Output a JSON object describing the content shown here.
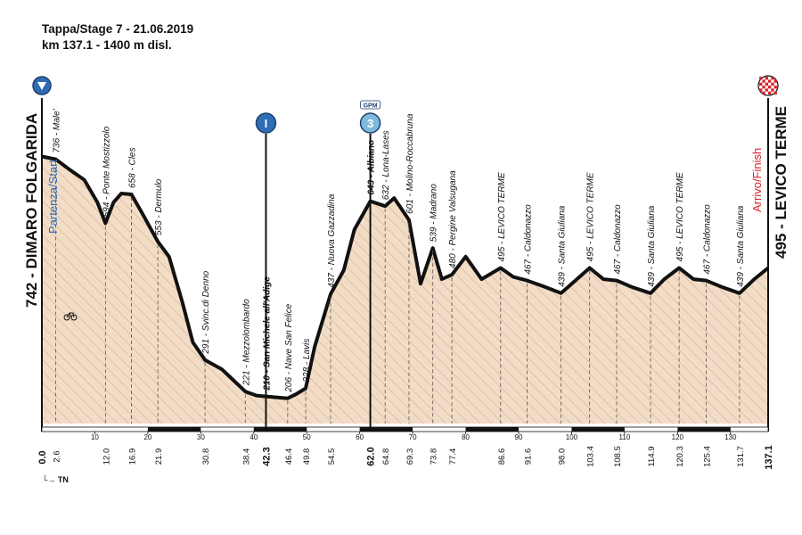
{
  "header": {
    "line1": "Tappa/Stage 7 - 21.06.2019",
    "line2": "km 137.1 - 1400 m disl."
  },
  "start": {
    "name": "742 - DIMARO FOLGARIDA",
    "label": "Partenza/Start",
    "icon": "start-arrow-icon"
  },
  "finish": {
    "name": "495 - LEVICO TERME",
    "label": "Arrivo/Finish",
    "icon": "checkered-flag-icon"
  },
  "footnote": "TN",
  "markers": {
    "intermediate": {
      "symbol": "I",
      "km": 42.3
    },
    "gpm": {
      "caption": "GPM",
      "symbol": "3",
      "km": 62.0
    }
  },
  "colors": {
    "profile_fill": "#f3dcc6",
    "hatch": "#c9a98b",
    "profile_line": "#111111",
    "marker_blue": "#2e6db4",
    "gpm_blue": "#7fbadc",
    "finish_red": "#d8232a"
  },
  "chart_data": {
    "type": "area",
    "xlabel": "",
    "ylabel": "",
    "xlim": [
      0,
      137.1
    ],
    "ylim": [
      150,
      1000
    ],
    "x_ticks": [
      0,
      10,
      20,
      30,
      40,
      50,
      60,
      70,
      80,
      90,
      100,
      110,
      120,
      130
    ],
    "profile": [
      {
        "km": 0.0,
        "alt": 742
      },
      {
        "km": 2.6,
        "alt": 736
      },
      {
        "km": 5.0,
        "alt": 715
      },
      {
        "km": 8.0,
        "alt": 690
      },
      {
        "km": 10.5,
        "alt": 640
      },
      {
        "km": 12.0,
        "alt": 594
      },
      {
        "km": 13.5,
        "alt": 640
      },
      {
        "km": 15.0,
        "alt": 660
      },
      {
        "km": 16.9,
        "alt": 658
      },
      {
        "km": 19.0,
        "alt": 615
      },
      {
        "km": 21.9,
        "alt": 553
      },
      {
        "km": 24.0,
        "alt": 520
      },
      {
        "km": 26.5,
        "alt": 420
      },
      {
        "km": 28.5,
        "alt": 330
      },
      {
        "km": 30.8,
        "alt": 291
      },
      {
        "km": 34.0,
        "alt": 270
      },
      {
        "km": 38.4,
        "alt": 221
      },
      {
        "km": 40.5,
        "alt": 212
      },
      {
        "km": 42.3,
        "alt": 210
      },
      {
        "km": 44.5,
        "alt": 208
      },
      {
        "km": 46.4,
        "alt": 206
      },
      {
        "km": 48.0,
        "alt": 215
      },
      {
        "km": 49.8,
        "alt": 228
      },
      {
        "km": 51.5,
        "alt": 320
      },
      {
        "km": 54.5,
        "alt": 437
      },
      {
        "km": 57.0,
        "alt": 490
      },
      {
        "km": 59.0,
        "alt": 580
      },
      {
        "km": 62.0,
        "alt": 643
      },
      {
        "km": 64.8,
        "alt": 632
      },
      {
        "km": 66.5,
        "alt": 650
      },
      {
        "km": 69.3,
        "alt": 601
      },
      {
        "km": 71.5,
        "alt": 460
      },
      {
        "km": 73.8,
        "alt": 539
      },
      {
        "km": 75.5,
        "alt": 470
      },
      {
        "km": 77.4,
        "alt": 480
      },
      {
        "km": 80.0,
        "alt": 520
      },
      {
        "km": 83.0,
        "alt": 470
      },
      {
        "km": 86.6,
        "alt": 495
      },
      {
        "km": 89.0,
        "alt": 475
      },
      {
        "km": 91.6,
        "alt": 467
      },
      {
        "km": 94.5,
        "alt": 455
      },
      {
        "km": 98.0,
        "alt": 439
      },
      {
        "km": 101.0,
        "alt": 470
      },
      {
        "km": 103.4,
        "alt": 495
      },
      {
        "km": 106.0,
        "alt": 470
      },
      {
        "km": 108.5,
        "alt": 467
      },
      {
        "km": 111.5,
        "alt": 452
      },
      {
        "km": 114.9,
        "alt": 439
      },
      {
        "km": 117.5,
        "alt": 470
      },
      {
        "km": 120.3,
        "alt": 495
      },
      {
        "km": 123.0,
        "alt": 470
      },
      {
        "km": 125.4,
        "alt": 467
      },
      {
        "km": 128.5,
        "alt": 452
      },
      {
        "km": 131.7,
        "alt": 439
      },
      {
        "km": 134.5,
        "alt": 470
      },
      {
        "km": 137.1,
        "alt": 495
      }
    ],
    "waypoints": [
      {
        "km": 2.6,
        "km_label": "2.6",
        "label": "736 - Male'"
      },
      {
        "km": 12.0,
        "km_label": "12.0",
        "label": "594 - Ponte Mostizzolo"
      },
      {
        "km": 16.9,
        "km_label": "16.9",
        "label": "658 - Cles"
      },
      {
        "km": 21.9,
        "km_label": "21.9",
        "label": "553 - Dermulo"
      },
      {
        "km": 30.8,
        "km_label": "30.8",
        "label": "291 - Svinc.di Denno"
      },
      {
        "km": 38.4,
        "km_label": "38.4",
        "label": "221 - Mezzolombardo"
      },
      {
        "km": 42.3,
        "km_label": "42.3",
        "label": "210 - San Michele all'Adige",
        "bold": true
      },
      {
        "km": 46.4,
        "km_label": "46.4",
        "label": "206 - Nave San Felice"
      },
      {
        "km": 49.8,
        "km_label": "49.8",
        "label": "228 - Lavis"
      },
      {
        "km": 54.5,
        "km_label": "54.5",
        "label": "437 - Nuova Gazzadina"
      },
      {
        "km": 62.0,
        "km_label": "62.0",
        "label": "643 - Albiano",
        "bold": true
      },
      {
        "km": 64.8,
        "km_label": "64.8",
        "label": "632 - Lona-Lases"
      },
      {
        "km": 69.3,
        "km_label": "69.3",
        "label": "601 - Molino-Roccabruna"
      },
      {
        "km": 73.8,
        "km_label": "73.8",
        "label": "539 - Madrano"
      },
      {
        "km": 77.4,
        "km_label": "77.4",
        "label": "480 - Pergine Valsugana"
      },
      {
        "km": 86.6,
        "km_label": "86.6",
        "label": "495 - LEVICO TERME"
      },
      {
        "km": 91.6,
        "km_label": "91.6",
        "label": "467 - Caldonazzo"
      },
      {
        "km": 98.0,
        "km_label": "98.0",
        "label": "439 - Santa Giuliana"
      },
      {
        "km": 103.4,
        "km_label": "103.4",
        "label": "495 - LEVICO TERME"
      },
      {
        "km": 108.5,
        "km_label": "108.5",
        "label": "467 - Caldonazzo"
      },
      {
        "km": 114.9,
        "km_label": "114.9",
        "label": "439 - Santa Giuliana"
      },
      {
        "km": 120.3,
        "km_label": "120.3",
        "label": "495 - LEVICO TERME"
      },
      {
        "km": 125.4,
        "km_label": "125.4",
        "label": "467 - Caldonazzo"
      },
      {
        "km": 131.7,
        "km_label": "131.7",
        "label": "439 - Santa Giuliana"
      }
    ],
    "start_km_label": "0.0",
    "finish_km_label": "137.1"
  }
}
